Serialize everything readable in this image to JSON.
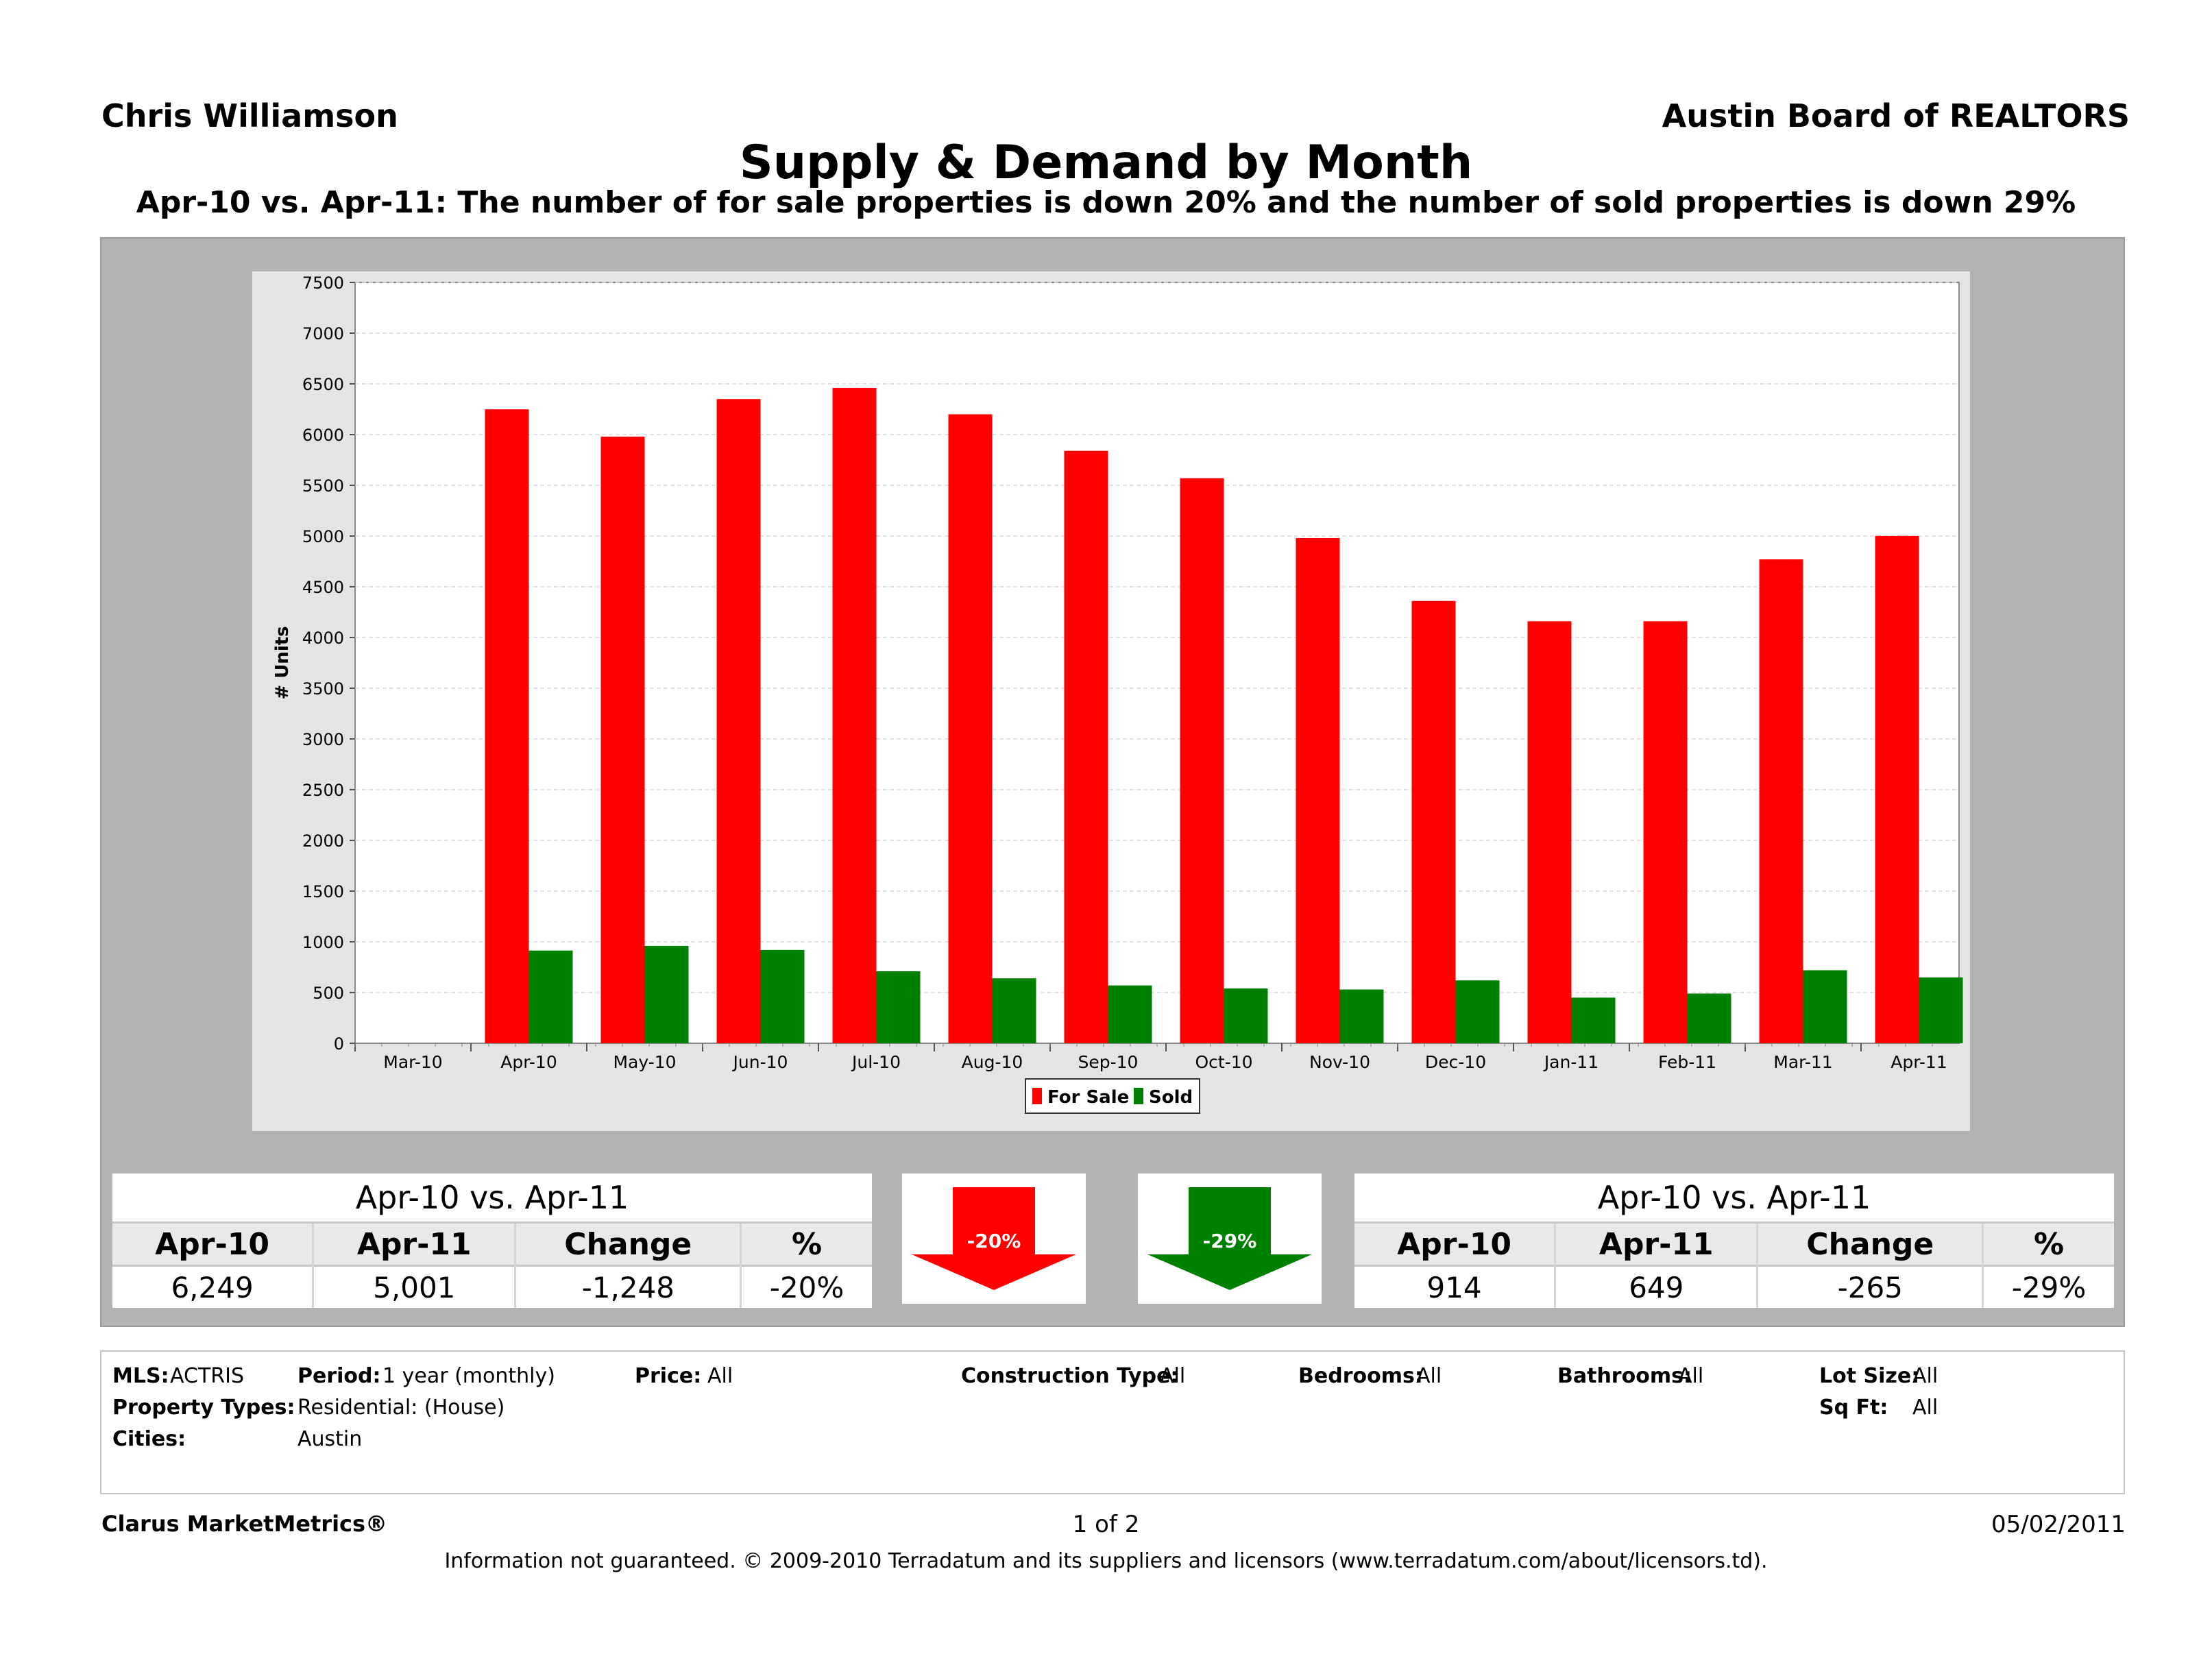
{
  "header": {
    "agent": "Chris Williamson",
    "board": "Austin Board of REALTORS",
    "title": "Supply & Demand by Month",
    "subtitle": "Apr-10 vs. Apr-11:  The number of for sale properties is down 20% and the number of sold properties is down 29%"
  },
  "chart_data": {
    "type": "bar",
    "categories": [
      "Mar-10",
      "Apr-10",
      "May-10",
      "Jun-10",
      "Jul-10",
      "Aug-10",
      "Sep-10",
      "Oct-10",
      "Nov-10",
      "Dec-10",
      "Jan-11",
      "Feb-11",
      "Mar-11",
      "Apr-11"
    ],
    "series": [
      {
        "name": "For Sale",
        "color": "#ff0000",
        "values": [
          null,
          6249,
          5980,
          6350,
          6460,
          6200,
          5840,
          5570,
          4980,
          4360,
          4160,
          4160,
          4770,
          5001
        ]
      },
      {
        "name": "Sold",
        "color": "#008000",
        "values": [
          null,
          914,
          960,
          920,
          710,
          640,
          570,
          540,
          530,
          620,
          450,
          490,
          720,
          649
        ]
      }
    ],
    "ylabel": "# Units",
    "xlabel": "",
    "ylim": [
      0,
      7500
    ],
    "yticks": [
      0,
      500,
      1000,
      1500,
      2000,
      2500,
      3000,
      3500,
      4000,
      4500,
      5000,
      5500,
      6000,
      6500,
      7000,
      7500
    ],
    "grid": true,
    "legend": "bottom-center"
  },
  "for_sale_table": {
    "caption": "Apr-10 vs. Apr-11",
    "headers": [
      "Apr-10",
      "Apr-11",
      "Change",
      "%"
    ],
    "values": [
      "6,249",
      "5,001",
      "-1,248",
      "-20%"
    ]
  },
  "sold_table": {
    "caption": "Apr-10 vs. Apr-11",
    "headers": [
      "Apr-10",
      "Apr-11",
      "Change",
      "%"
    ],
    "values": [
      "914",
      "649",
      "-265",
      "-29%"
    ]
  },
  "arrows": {
    "for_sale_pct": "-20%",
    "sold_pct": "-29%",
    "for_sale_color": "#ff0000",
    "sold_color": "#008000"
  },
  "criteria": {
    "mls_label": "MLS:",
    "mls": "ACTRIS",
    "period_label": "Period:",
    "period": "1 year (monthly)",
    "price_label": "Price:",
    "price": "All",
    "construction_label": "Construction Type:",
    "construction": "All",
    "bedrooms_label": "Bedrooms:",
    "bedrooms": "All",
    "bathrooms_label": "Bathrooms:",
    "bathrooms": "All",
    "lotsize_label": "Lot Size:",
    "lotsize": "All",
    "sqft_label": "Sq Ft:",
    "sqft": "All",
    "ptypes_label": "Property Types:",
    "ptypes": "Residential: (House)",
    "cities_label": "Cities:",
    "cities": "Austin"
  },
  "footer": {
    "brand": "Clarus MarketMetrics®",
    "page": "1 of 2",
    "date": "05/02/2011",
    "note": "Information not guaranteed.  © 2009-2010 Terradatum and its suppliers and licensors (www.terradatum.com/about/licensors.td)."
  }
}
